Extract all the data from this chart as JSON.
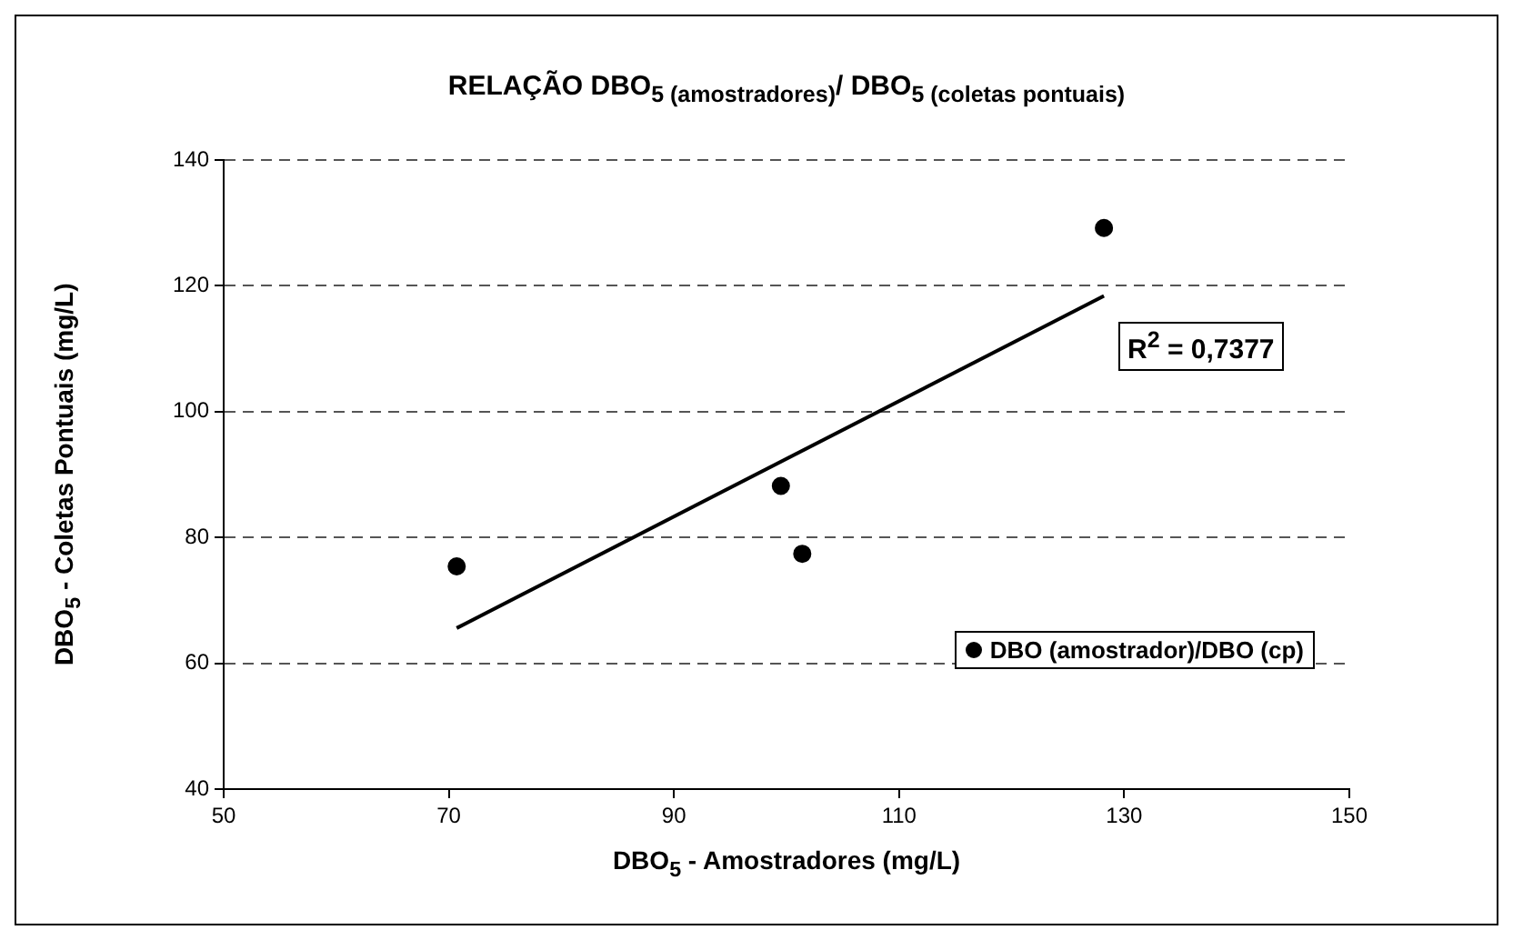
{
  "chart_data": {
    "type": "scatter",
    "title": "RELAÇÃO DBO$_{5 (amostradores)}$/ DBO$_{5 (coletas pontuais)}$",
    "xlabel": "DBO$_{5}$ - Amostradores (mg/L)",
    "ylabel": "DBO$_{5}$ - Coletas Pontuais (mg/L)",
    "annotations": [
      "R$^{2}$ = 0,7377"
    ],
    "x": [
      70.7,
      99.5,
      101.4,
      128.2
    ],
    "series": [
      {
        "name": "DBO (amostrador)/DBO (cp)",
        "color": "#000000",
        "values": [
          75.4,
          88.2,
          77.4,
          129.2
        ],
        "marker": "circle"
      },
      {
        "type": "line",
        "color": "#000000",
        "x": [
          70.7,
          128.2
        ],
        "values": [
          65.6,
          118.4
        ],
        "marker": "none",
        "line_style": "solid"
      }
    ],
    "xlim": [
      50,
      150
    ],
    "xticks": [
      50,
      70,
      90,
      110,
      130,
      150
    ],
    "ylim": [
      40,
      140
    ],
    "yticks": [
      40,
      60,
      80,
      100,
      120,
      140
    ],
    "grid": "y",
    "legend": "bottom right"
  }
}
